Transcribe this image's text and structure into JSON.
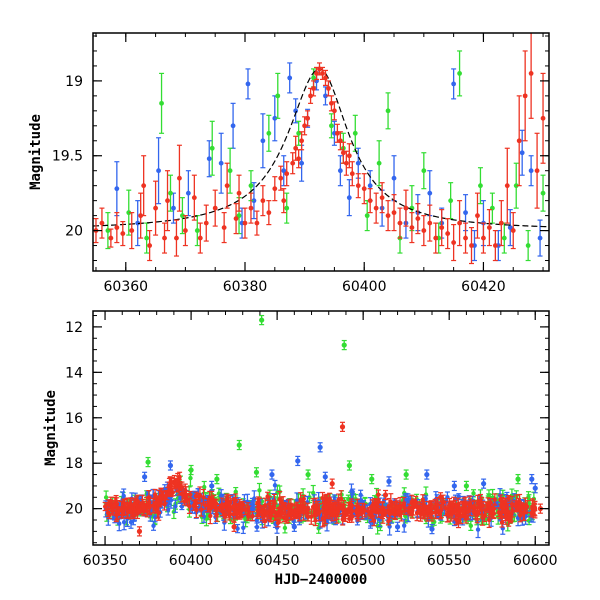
{
  "chart_data": [
    {
      "type": "scatter",
      "xlabel": "",
      "ylabel": "Magnitude",
      "xlim": [
        60354.5,
        60431
      ],
      "ylim": [
        20.27,
        18.68
      ],
      "y_inverted": true,
      "xticks": [
        60360,
        60380,
        60400,
        60420
      ],
      "yticks": [
        19,
        19.5,
        20
      ],
      "model_curve": {
        "baseline": 20.0,
        "peak_x": 60392.5,
        "peak_y": 18.92,
        "rise_timescale": 6.5,
        "decay_timescale": 6.0,
        "color": "#000000"
      },
      "series": [
        {
          "color": "#3366ee",
          "points": [
            [
              60358.5,
              19.72,
              0.18
            ],
            [
              60362.0,
              19.95,
              0.15
            ],
            [
              60365.5,
              19.6,
              0.22
            ],
            [
              60368.0,
              19.85,
              0.1
            ],
            [
              60370.5,
              19.75,
              0.15
            ],
            [
              60374.0,
              19.52,
              0.12
            ],
            [
              60376.0,
              19.55,
              0.2
            ],
            [
              60378.0,
              19.3,
              0.15
            ],
            [
              60379.5,
              19.95,
              0.1
            ],
            [
              60380.5,
              19.02,
              0.1
            ],
            [
              60381.5,
              19.8,
              0.12
            ],
            [
              60383.0,
              19.4,
              0.18
            ],
            [
              60385.0,
              19.25,
              0.15
            ],
            [
              60386.5,
              19.6,
              0.1
            ],
            [
              60387.5,
              18.98,
              0.1
            ],
            [
              60388.5,
              19.2,
              0.08
            ],
            [
              60389.5,
              19.55,
              0.12
            ],
            [
              60390.5,
              19.25,
              0.06
            ],
            [
              60392.0,
              19.0,
              0.06
            ],
            [
              60393.5,
              19.1,
              0.06
            ],
            [
              60395.0,
              19.35,
              0.08
            ],
            [
              60396.0,
              19.6,
              0.1
            ],
            [
              60397.5,
              19.78,
              0.12
            ],
            [
              60399.0,
              19.55,
              0.1
            ],
            [
              60401.0,
              19.7,
              0.1
            ],
            [
              60403.0,
              19.85,
              0.12
            ],
            [
              60405.0,
              19.65,
              0.15
            ],
            [
              60407.0,
              19.95,
              0.1
            ],
            [
              60409.0,
              19.88,
              0.12
            ],
            [
              60411.0,
              19.75,
              0.15
            ],
            [
              60413.0,
              19.95,
              0.1
            ],
            [
              60415.0,
              19.02,
              0.1
            ],
            [
              60417.0,
              19.88,
              0.12
            ],
            [
              60418.5,
              20.1,
              0.1
            ],
            [
              60420.0,
              19.95,
              0.15
            ],
            [
              60422.5,
              20.1,
              0.1
            ],
            [
              60424.5,
              19.98,
              0.12
            ],
            [
              60426.5,
              19.48,
              0.15
            ],
            [
              60428.0,
              19.6,
              0.1
            ],
            [
              60429.5,
              20.05,
              0.12
            ]
          ]
        },
        {
          "color": "#33dd33",
          "points": [
            [
              60357.0,
              20.0,
              0.12
            ],
            [
              60360.5,
              19.88,
              0.15
            ],
            [
              60363.5,
              20.05,
              0.1
            ],
            [
              60366.0,
              19.15,
              0.2
            ],
            [
              60367.5,
              19.75,
              0.12
            ],
            [
              60369.5,
              19.9,
              0.12
            ],
            [
              60372.0,
              20.0,
              0.1
            ],
            [
              60374.5,
              19.45,
              0.18
            ],
            [
              60377.5,
              19.6,
              0.15
            ],
            [
              60379.0,
              19.9,
              0.12
            ],
            [
              60381.0,
              19.7,
              0.1
            ],
            [
              60384.0,
              19.35,
              0.12
            ],
            [
              60385.5,
              19.1,
              0.15
            ],
            [
              60387.0,
              19.85,
              0.1
            ],
            [
              60389.0,
              19.35,
              0.08
            ],
            [
              60391.5,
              18.98,
              0.06
            ],
            [
              60394.5,
              19.3,
              0.08
            ],
            [
              60396.5,
              19.45,
              0.1
            ],
            [
              60398.5,
              19.35,
              0.12
            ],
            [
              60400.5,
              19.9,
              0.1
            ],
            [
              60402.5,
              19.55,
              0.15
            ],
            [
              60404.0,
              19.2,
              0.12
            ],
            [
              60406.0,
              20.05,
              0.1
            ],
            [
              60408.0,
              19.85,
              0.15
            ],
            [
              60410.0,
              19.6,
              0.12
            ],
            [
              60412.5,
              20.05,
              0.1
            ],
            [
              60414.5,
              19.8,
              0.12
            ],
            [
              60416.0,
              18.95,
              0.15
            ],
            [
              60419.5,
              19.7,
              0.12
            ],
            [
              60421.5,
              19.85,
              0.1
            ],
            [
              60423.5,
              20.05,
              0.1
            ],
            [
              60425.5,
              19.7,
              0.15
            ],
            [
              60427.5,
              20.1,
              0.1
            ],
            [
              60430.0,
              19.75,
              0.12
            ]
          ]
        },
        {
          "color": "#ee3322",
          "points": [
            [
              60355.0,
              20.0,
              0.08
            ],
            [
              60356.0,
              19.95,
              0.1
            ],
            [
              60357.5,
              20.05,
              0.06
            ],
            [
              60358.5,
              19.98,
              0.1
            ],
            [
              60359.5,
              20.02,
              0.08
            ],
            [
              60361.0,
              20.0,
              0.12
            ],
            [
              60362.5,
              19.9,
              0.15
            ],
            [
              60363.0,
              19.7,
              0.2
            ],
            [
              60364.0,
              20.1,
              0.1
            ],
            [
              60365.0,
              19.85,
              0.18
            ],
            [
              60366.5,
              20.05,
              0.1
            ],
            [
              60367.0,
              19.8,
              0.2
            ],
            [
              60368.5,
              20.05,
              0.12
            ],
            [
              60369.0,
              19.65,
              0.22
            ],
            [
              60370.0,
              20.0,
              0.1
            ],
            [
              60371.5,
              19.78,
              0.15
            ],
            [
              60372.5,
              20.05,
              0.1
            ],
            [
              60373.5,
              19.95,
              0.12
            ],
            [
              60375.0,
              19.85,
              0.12
            ],
            [
              60376.5,
              19.98,
              0.1
            ],
            [
              60377.0,
              19.7,
              0.15
            ],
            [
              60378.5,
              19.92,
              0.1
            ],
            [
              60379.0,
              19.75,
              0.12
            ],
            [
              60380.0,
              19.95,
              0.1
            ],
            [
              60381.0,
              19.85,
              0.1
            ],
            [
              60382.0,
              19.95,
              0.08
            ],
            [
              60383.0,
              19.8,
              0.1
            ],
            [
              60384.0,
              19.88,
              0.08
            ],
            [
              60385.0,
              19.72,
              0.08
            ],
            [
              60386.0,
              19.65,
              0.08
            ],
            [
              60386.5,
              19.8,
              0.08
            ],
            [
              60387.0,
              19.62,
              0.08
            ],
            [
              60388.0,
              19.55,
              0.07
            ],
            [
              60388.5,
              19.45,
              0.08
            ],
            [
              60389.0,
              19.52,
              0.06
            ],
            [
              60389.5,
              19.4,
              0.06
            ],
            [
              60390.0,
              19.3,
              0.06
            ],
            [
              60390.5,
              19.25,
              0.05
            ],
            [
              60391.0,
              19.1,
              0.05
            ],
            [
              60391.5,
              19.05,
              0.05
            ],
            [
              60392.0,
              18.95,
              0.04
            ],
            [
              60392.5,
              18.92,
              0.04
            ],
            [
              60393.0,
              18.95,
              0.04
            ],
            [
              60393.5,
              18.98,
              0.05
            ],
            [
              60394.0,
              19.05,
              0.05
            ],
            [
              60394.5,
              19.15,
              0.05
            ],
            [
              60395.0,
              19.2,
              0.06
            ],
            [
              60395.5,
              19.35,
              0.06
            ],
            [
              60396.0,
              19.4,
              0.06
            ],
            [
              60396.5,
              19.48,
              0.07
            ],
            [
              60397.0,
              19.55,
              0.08
            ],
            [
              60397.5,
              19.5,
              0.08
            ],
            [
              60398.0,
              19.62,
              0.08
            ],
            [
              60399.0,
              19.7,
              0.08
            ],
            [
              60400.0,
              19.72,
              0.1
            ],
            [
              60401.0,
              19.8,
              0.08
            ],
            [
              60402.0,
              19.85,
              0.1
            ],
            [
              60403.0,
              19.78,
              0.1
            ],
            [
              60404.0,
              19.9,
              0.1
            ],
            [
              60405.0,
              19.88,
              0.12
            ],
            [
              60406.0,
              19.95,
              0.1
            ],
            [
              60407.0,
              19.85,
              0.12
            ],
            [
              60408.0,
              19.98,
              0.1
            ],
            [
              60409.0,
              19.92,
              0.1
            ],
            [
              60410.0,
              20.0,
              0.1
            ],
            [
              60411.0,
              19.95,
              0.12
            ],
            [
              60412.0,
              20.05,
              0.1
            ],
            [
              60413.0,
              19.98,
              0.12
            ],
            [
              60414.0,
              20.02,
              0.1
            ],
            [
              60415.0,
              20.08,
              0.12
            ],
            [
              60416.0,
              19.95,
              0.15
            ],
            [
              60417.0,
              20.05,
              0.1
            ],
            [
              60418.0,
              20.1,
              0.12
            ],
            [
              60419.0,
              19.9,
              0.15
            ],
            [
              60420.0,
              20.05,
              0.1
            ],
            [
              60421.0,
              19.98,
              0.12
            ],
            [
              60422.0,
              20.1,
              0.1
            ],
            [
              60423.0,
              19.95,
              0.15
            ],
            [
              60424.0,
              19.7,
              0.25
            ],
            [
              60425.0,
              20.0,
              0.12
            ],
            [
              60426.0,
              19.4,
              0.3
            ],
            [
              60427.0,
              19.1,
              0.3
            ],
            [
              60428.0,
              18.95,
              0.3
            ],
            [
              60429.0,
              19.6,
              0.25
            ],
            [
              60430.0,
              19.25,
              0.3
            ]
          ]
        }
      ]
    },
    {
      "type": "scatter",
      "xlabel": "HJD−2400000",
      "ylabel": "Magnitude",
      "xlim": [
        60343,
        60608
      ],
      "ylim": [
        21.6,
        11.3
      ],
      "y_inverted": true,
      "xticks": [
        60350,
        60400,
        60450,
        60500,
        60550,
        60600
      ],
      "yticks": [
        12,
        14,
        16,
        18,
        20
      ],
      "dense_band": {
        "x_range": [
          60350,
          60600
        ],
        "y_center": 20.05,
        "y_scatter": 0.35
      },
      "bump": {
        "x_center": 60392,
        "y_peak": 19.0,
        "width": 8
      },
      "series": [
        {
          "color": "#3366ee",
          "outliers": [
            [
              60373,
              18.6
            ],
            [
              60388,
              18.1
            ],
            [
              60412,
              19.0
            ],
            [
              60447,
              18.5
            ],
            [
              60462,
              17.9
            ],
            [
              60475,
              17.3
            ],
            [
              60478,
              18.6
            ],
            [
              60515,
              18.8
            ],
            [
              60537,
              18.5
            ],
            [
              60553,
              19.0
            ],
            [
              60570,
              18.9
            ],
            [
              60598,
              18.7
            ],
            [
              60600,
              19.1
            ],
            [
              60540,
              20.9
            ],
            [
              60460,
              20.8
            ],
            [
              60520,
              20.8
            ]
          ]
        },
        {
          "color": "#33dd33",
          "outliers": [
            [
              60441,
              11.7
            ],
            [
              60489,
              12.8
            ],
            [
              60428,
              17.2
            ],
            [
              60375,
              17.95
            ],
            [
              60400,
              18.3
            ],
            [
              60415,
              18.7
            ],
            [
              60438,
              18.4
            ],
            [
              60468,
              18.5
            ],
            [
              60492,
              18.1
            ],
            [
              60505,
              18.7
            ],
            [
              60525,
              18.5
            ],
            [
              60560,
              19.0
            ],
            [
              60590,
              18.7
            ]
          ]
        },
        {
          "color": "#ee3322",
          "outliers": [
            [
              60488,
              16.4
            ],
            [
              60482,
              18.9
            ],
            [
              60513,
              19.4
            ],
            [
              60545,
              19.5
            ],
            [
              60370,
              21.0
            ],
            [
              60425,
              20.8
            ],
            [
              60580,
              19.6
            ],
            [
              60603,
              20.0
            ]
          ]
        }
      ]
    }
  ]
}
